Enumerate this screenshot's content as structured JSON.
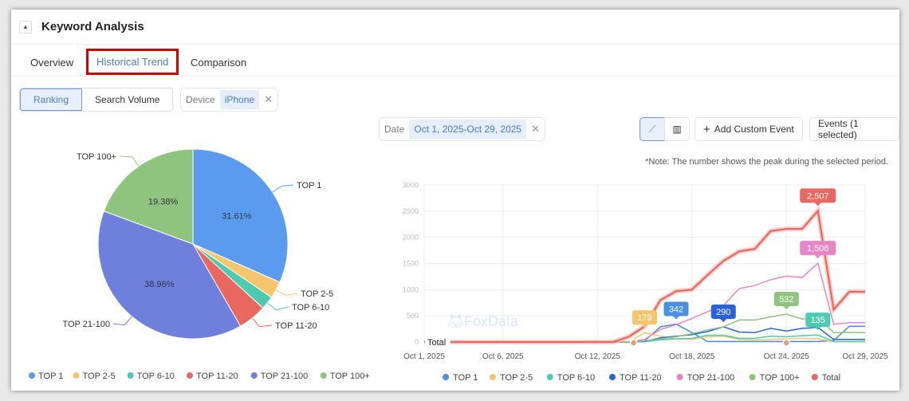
{
  "header": {
    "title": "Keyword Analysis",
    "collapse_icon": "caret-up-icon"
  },
  "tabs": [
    {
      "label": "Overview"
    },
    {
      "label": "Historical Trend",
      "active": true
    },
    {
      "label": "Comparison"
    }
  ],
  "metric_toggle": {
    "options": [
      "Ranking",
      "Search Volume"
    ],
    "selected": "Ranking"
  },
  "device_filter": {
    "label": "Device",
    "value": "iPhone"
  },
  "date_filter": {
    "label": "Date",
    "value": "Oct 1, 2025-Oct 29, 2025"
  },
  "chart_toolbar": {
    "line_icon": "line-chart-icon",
    "bar_icon": "bar-chart-icon",
    "add_event": "Add Custom Event",
    "events": "Events (1 selected)"
  },
  "note": "*Note: The number shows the peak during the selected period.",
  "colors": {
    "TOP 1": "#5b9bee",
    "TOP 2-5": "#f7c56e",
    "TOP 6-10": "#4fc9b0",
    "TOP 11-20": "#e8675e",
    "TOP 21-100": "#6e7fdc",
    "TOP 100+": "#8fc47f"
  },
  "chart_data": [
    {
      "type": "pie",
      "categories": [
        "TOP 1",
        "TOP 2-5",
        "TOP 6-10",
        "TOP 11-20",
        "TOP 21-100",
        "TOP 100+"
      ],
      "values": [
        31.61,
        2.9,
        2.3,
        4.85,
        38.96,
        19.38
      ],
      "data_labels": {
        "TOP 1": "31.61%",
        "TOP 21-100": "38.96%",
        "TOP 100+": "19.38%"
      },
      "legend": "bottom"
    },
    {
      "type": "line",
      "x": [
        "Oct 1",
        "Oct 2",
        "Oct 3",
        "Oct 4",
        "Oct 5",
        "Oct 6",
        "Oct 7",
        "Oct 8",
        "Oct 9",
        "Oct 10",
        "Oct 11",
        "Oct 12",
        "Oct 13",
        "Oct 14",
        "Oct 15",
        "Oct 16",
        "Oct 17",
        "Oct 18",
        "Oct 19",
        "Oct 20",
        "Oct 21",
        "Oct 22",
        "Oct 23",
        "Oct 24",
        "Oct 25",
        "Oct 26",
        "Oct 27",
        "Oct 28",
        "Oct 29"
      ],
      "xticks": [
        "Oct 1, 2025",
        "Oct 6, 2025",
        "Oct 12, 2025",
        "Oct 18, 2025",
        "Oct 24, 2025",
        "Oct 29, 2025"
      ],
      "yticks": [
        "0",
        "500",
        "1000",
        "1500",
        "2000",
        "2500",
        "3000"
      ],
      "ylim": [
        0,
        3000
      ],
      "grid": true,
      "legend": "bottom",
      "watermark": "FoxData",
      "series": [
        {
          "name": "TOP 1",
          "color": "#4a8fe0",
          "values": [
            0,
            0,
            0,
            0,
            0,
            0,
            0,
            0,
            0,
            0,
            0,
            0,
            0,
            0,
            20,
            290,
            342,
            180,
            10,
            10,
            10,
            10,
            10,
            10,
            10,
            10,
            30,
            300,
            300
          ],
          "peak": "342"
        },
        {
          "name": "TOP 2-5",
          "color": "#f7c56e",
          "values": [
            0,
            0,
            0,
            0,
            0,
            0,
            0,
            0,
            0,
            0,
            0,
            0,
            0,
            0,
            179,
            110,
            60,
            50,
            100,
            110,
            50,
            40,
            50,
            60,
            70,
            60,
            5,
            5,
            5
          ],
          "peak": "179"
        },
        {
          "name": "TOP 6-10",
          "color": "#4fc9b0",
          "values": [
            0,
            0,
            0,
            0,
            0,
            0,
            0,
            0,
            0,
            0,
            0,
            0,
            0,
            0,
            10,
            40,
            60,
            70,
            130,
            130,
            70,
            70,
            110,
            100,
            120,
            135,
            10,
            10,
            10
          ],
          "peak": "135"
        },
        {
          "name": "TOP 11-20",
          "color": "#2a62d8",
          "values": [
            0,
            0,
            0,
            0,
            0,
            0,
            0,
            0,
            0,
            0,
            0,
            0,
            0,
            0,
            10,
            80,
            110,
            140,
            200,
            290,
            190,
            180,
            260,
            210,
            260,
            280,
            50,
            50,
            50
          ],
          "peak": "290"
        },
        {
          "name": "TOP 21-100",
          "color": "#e587c6",
          "values": [
            0,
            0,
            0,
            0,
            0,
            0,
            0,
            0,
            0,
            0,
            0,
            0,
            0,
            0,
            50,
            240,
            330,
            450,
            580,
            700,
            1020,
            1080,
            1190,
            1260,
            1230,
            1506,
            340,
            370,
            370
          ],
          "peak": "1,506"
        },
        {
          "name": "TOP 100+",
          "color": "#8fc47f",
          "values": [
            0,
            0,
            0,
            0,
            0,
            0,
            0,
            0,
            0,
            0,
            0,
            0,
            0,
            0,
            20,
            60,
            100,
            160,
            230,
            290,
            420,
            420,
            480,
            532,
            440,
            470,
            180,
            180,
            180
          ],
          "peak": "532"
        },
        {
          "name": "Total",
          "color": "#e8675e",
          "values": [
            0,
            0,
            0,
            0,
            0,
            0,
            0,
            0,
            0,
            0,
            0,
            0,
            0,
            100,
            300,
            800,
            970,
            1000,
            1280,
            1550,
            1730,
            1780,
            2120,
            2160,
            2160,
            2507,
            620,
            960,
            960
          ],
          "peak": "2,507"
        }
      ],
      "event_marker_label": "Total"
    }
  ]
}
